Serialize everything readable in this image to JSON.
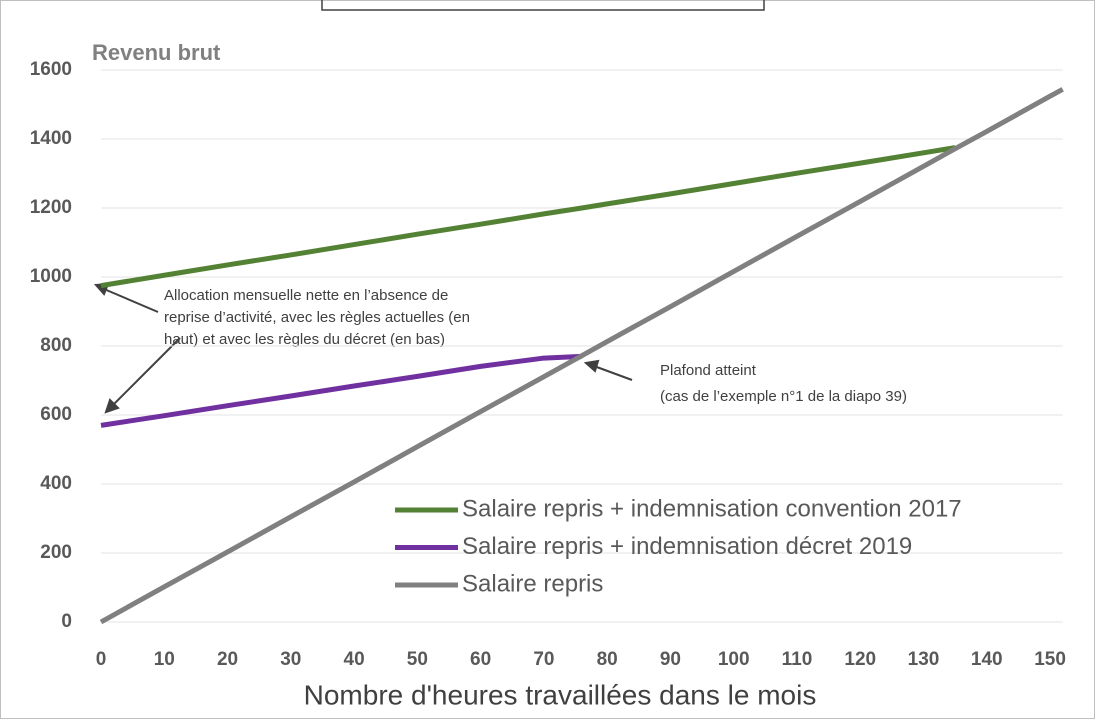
{
  "chart_data": {
    "type": "line",
    "title": "Revenu brut",
    "x_label": "Nombre d'heures travaillées dans le mois",
    "x": [
      0,
      10,
      20,
      30,
      40,
      50,
      60,
      70,
      76,
      80,
      90,
      100,
      110,
      120,
      130,
      135,
      140,
      150,
      152
    ],
    "series": [
      {
        "name": "Salaire repris + indemnisation convention 2017",
        "color": "#548235",
        "values": [
          975,
          1005,
          1035,
          1064,
          1094,
          1124,
          1153,
          1183,
          1200,
          1212,
          1241,
          1271,
          1301,
          1330,
          1360,
          1375,
          null,
          null,
          null
        ]
      },
      {
        "name": "Salaire repris + indemnisation décret 2019",
        "color": "#7030a0",
        "values": [
          570,
          598,
          627,
          655,
          684,
          712,
          741,
          765,
          770,
          null,
          null,
          null,
          null,
          null,
          null,
          null,
          null,
          null,
          null
        ]
      },
      {
        "name": "Salaire repris",
        "color": "#808080",
        "values": [
          0,
          102,
          203,
          305,
          406,
          508,
          610,
          711,
          772,
          813,
          914,
          1016,
          1118,
          1219,
          1321,
          1372,
          1422,
          1524,
          1544
        ]
      }
    ],
    "xlim": [
      0,
      152
    ],
    "xticks": [
      0,
      10,
      20,
      30,
      40,
      50,
      60,
      70,
      80,
      90,
      100,
      110,
      120,
      130,
      140,
      150
    ],
    "ylim": [
      0,
      1600
    ],
    "yticks": [
      0,
      200,
      400,
      600,
      800,
      1000,
      1200,
      1400,
      1600
    ],
    "grid": true,
    "annotations": [
      {
        "lines": [
          "Allocation mensuelle nette en l’absence de",
          "reprise d’activité, avec les règles actuelles (en",
          "haut) et avec les règles du décret (en bas)"
        ]
      },
      {
        "lines": [
          "Plafond atteint",
          "(cas de l’exemple n°1 de la diapo 39)"
        ]
      }
    ]
  }
}
